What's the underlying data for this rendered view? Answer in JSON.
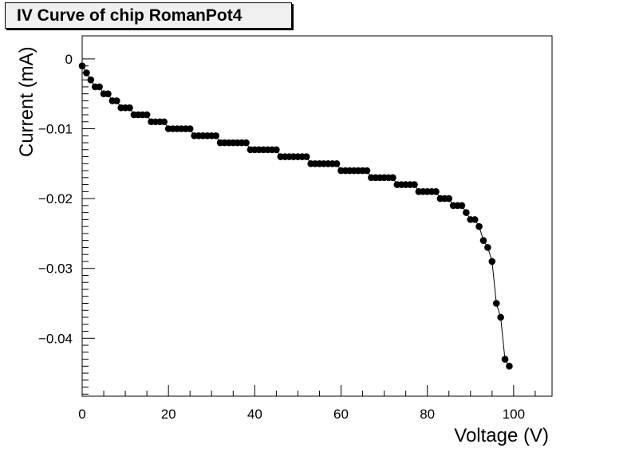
{
  "chart_data": {
    "type": "scatter",
    "title": "IV Curve of chip RomanPot4",
    "xlabel": "Voltage (V)",
    "ylabel": "Current (mA)",
    "xlim": [
      0,
      108.9
    ],
    "ylim": [
      -0.0483,
      0.0033
    ],
    "xticks": [
      0,
      20,
      40,
      60,
      80,
      100
    ],
    "xtick_labels": [
      "0",
      "20",
      "40",
      "60",
      "80",
      "100"
    ],
    "yticks": [
      0,
      -0.01,
      -0.02,
      -0.03,
      -0.04
    ],
    "ytick_labels": [
      "0",
      "−0.01",
      "−0.02",
      "−0.03",
      "−0.04"
    ],
    "grid": false,
    "marker": "filled-circle",
    "connected_line": true,
    "series": [
      {
        "x": [
          0,
          1,
          2,
          3,
          4,
          5,
          6,
          7,
          8,
          9,
          10,
          11,
          12,
          13,
          14,
          15,
          16,
          17,
          18,
          19,
          20,
          21,
          22,
          23,
          24,
          25,
          26,
          27,
          28,
          29,
          30,
          31,
          32,
          33,
          34,
          35,
          36,
          37,
          38,
          39,
          40,
          41,
          42,
          43,
          44,
          45,
          46,
          47,
          48,
          49,
          50,
          51,
          52,
          53,
          54,
          55,
          56,
          57,
          58,
          59,
          60,
          61,
          62,
          63,
          64,
          65,
          66,
          67,
          68,
          69,
          70,
          71,
          72,
          73,
          74,
          75,
          76,
          77,
          78,
          79,
          80,
          81,
          82,
          83,
          84,
          85,
          86,
          87,
          88,
          89,
          90,
          91,
          92,
          93,
          94,
          95,
          96,
          97,
          98,
          99
        ],
        "y": [
          -0.001,
          -0.002,
          -0.003,
          -0.004,
          -0.004,
          -0.005,
          -0.005,
          -0.006,
          -0.006,
          -0.007,
          -0.007,
          -0.007,
          -0.008,
          -0.008,
          -0.008,
          -0.008,
          -0.009,
          -0.009,
          -0.009,
          -0.009,
          -0.01,
          -0.01,
          -0.01,
          -0.01,
          -0.01,
          -0.01,
          -0.011,
          -0.011,
          -0.011,
          -0.011,
          -0.011,
          -0.011,
          -0.012,
          -0.012,
          -0.012,
          -0.012,
          -0.012,
          -0.012,
          -0.012,
          -0.013,
          -0.013,
          -0.013,
          -0.013,
          -0.013,
          -0.013,
          -0.013,
          -0.014,
          -0.014,
          -0.014,
          -0.014,
          -0.014,
          -0.014,
          -0.014,
          -0.015,
          -0.015,
          -0.015,
          -0.015,
          -0.015,
          -0.015,
          -0.015,
          -0.016,
          -0.016,
          -0.016,
          -0.016,
          -0.016,
          -0.016,
          -0.016,
          -0.017,
          -0.017,
          -0.017,
          -0.017,
          -0.017,
          -0.017,
          -0.018,
          -0.018,
          -0.018,
          -0.018,
          -0.018,
          -0.019,
          -0.019,
          -0.019,
          -0.019,
          -0.019,
          -0.02,
          -0.02,
          -0.02,
          -0.021,
          -0.021,
          -0.021,
          -0.022,
          -0.023,
          -0.023,
          -0.024,
          -0.026,
          -0.027,
          -0.029,
          -0.035,
          -0.037,
          -0.043,
          -0.044
        ]
      }
    ]
  }
}
